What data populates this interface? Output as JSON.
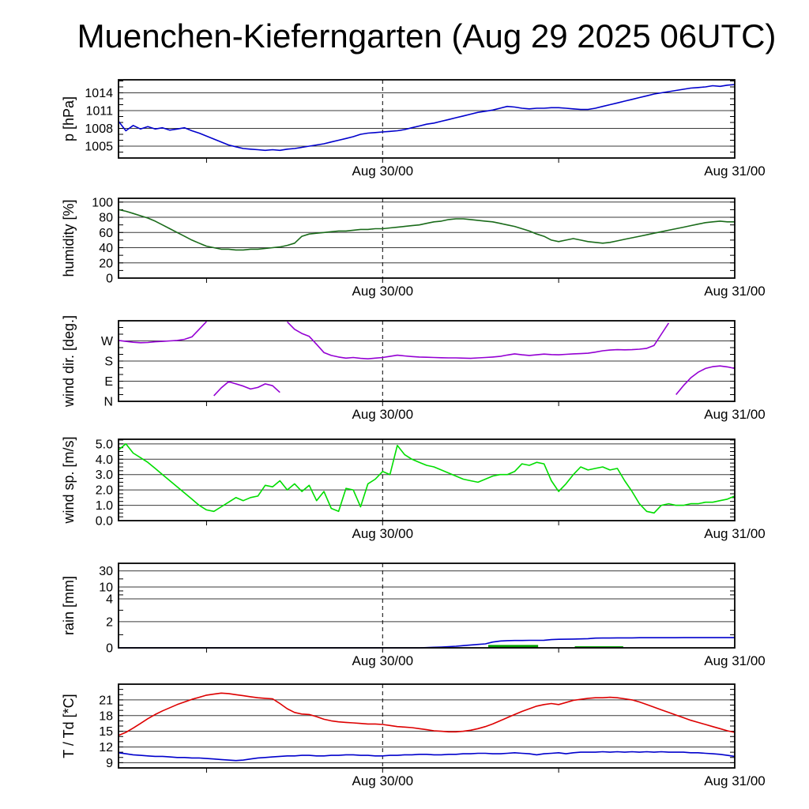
{
  "title": "Muenchen-Kieferngarten (Aug 29 2025 06UTC)",
  "x_axis": {
    "start_hour": 6,
    "end_hour": 48,
    "labels": [
      {
        "hour": 24,
        "label": "Aug 30/00"
      },
      {
        "hour": 48,
        "label": "Aug 31/00"
      }
    ],
    "minor_tick_hours": [
      12,
      36
    ],
    "dashed_line_hour": 24
  },
  "chart_data": [
    {
      "type": "line",
      "name": "pressure",
      "ylabel": "p [hPa]",
      "ylim": [
        1003,
        1016.2
      ],
      "yticks": [
        {
          "v": 1005,
          "label": "1005"
        },
        {
          "v": 1008,
          "label": "1008"
        },
        {
          "v": 1011,
          "label": "1011"
        },
        {
          "v": 1014,
          "label": "1014"
        }
      ],
      "minor_step": 1,
      "series": [
        {
          "name": "pressure",
          "color": "#0000cc",
          "x_start": 6,
          "x_step": 0.5,
          "y": [
            1009.2,
            1007.6,
            1008.5,
            1007.9,
            1008.3,
            1007.9,
            1008.1,
            1007.7,
            1007.9,
            1008.1,
            1007.6,
            1007.2,
            1006.7,
            1006.2,
            1005.7,
            1005.2,
            1004.9,
            1004.6,
            1004.5,
            1004.4,
            1004.3,
            1004.4,
            1004.3,
            1004.5,
            1004.6,
            1004.8,
            1005.0,
            1005.2,
            1005.4,
            1005.7,
            1006.0,
            1006.3,
            1006.6,
            1007.0,
            1007.2,
            1007.3,
            1007.4,
            1007.5,
            1007.6,
            1007.8,
            1008.1,
            1008.4,
            1008.7,
            1008.9,
            1009.2,
            1009.5,
            1009.8,
            1010.1,
            1010.4,
            1010.7,
            1010.9,
            1011.1,
            1011.4,
            1011.7,
            1011.6,
            1011.4,
            1011.3,
            1011.4,
            1011.4,
            1011.5,
            1011.5,
            1011.4,
            1011.3,
            1011.2,
            1011.2,
            1011.4,
            1011.7,
            1012.0,
            1012.3,
            1012.6,
            1012.9,
            1013.2,
            1013.5,
            1013.8,
            1014.0,
            1014.2,
            1014.4,
            1014.6,
            1014.8,
            1014.9,
            1015.0,
            1015.2,
            1015.1,
            1015.3,
            1015.4
          ]
        }
      ]
    },
    {
      "type": "line",
      "name": "humidity",
      "ylabel": "humidity [%]",
      "ylim": [
        0,
        105
      ],
      "yticks": [
        {
          "v": 0,
          "label": "0"
        },
        {
          "v": 20,
          "label": "20"
        },
        {
          "v": 40,
          "label": "40"
        },
        {
          "v": 60,
          "label": "60"
        },
        {
          "v": 80,
          "label": "80"
        },
        {
          "v": 100,
          "label": "100"
        }
      ],
      "minor_step": 10,
      "series": [
        {
          "name": "humidity",
          "color": "#1a6b1a",
          "x_start": 6,
          "x_step": 0.5,
          "y": [
            90,
            88,
            85,
            82,
            79,
            75,
            70,
            65,
            60,
            55,
            50,
            46,
            42,
            40,
            38,
            38,
            37,
            37,
            38,
            38,
            39,
            40,
            41,
            43,
            46,
            55,
            58,
            59,
            60,
            61,
            62,
            62,
            63,
            64,
            64,
            65,
            65,
            66,
            67,
            68,
            69,
            70,
            72,
            74,
            75,
            77,
            78,
            78,
            77,
            76,
            75,
            74,
            72,
            70,
            68,
            65,
            62,
            58,
            55,
            50,
            48,
            50,
            52,
            50,
            48,
            47,
            46,
            47,
            49,
            51,
            53,
            55,
            57,
            59,
            61,
            63,
            65,
            67,
            69,
            71,
            73,
            74,
            75,
            74,
            74
          ]
        }
      ]
    },
    {
      "type": "line",
      "name": "wind-direction",
      "ylabel": "wind dir. [deg.]",
      "ylim": [
        0,
        360
      ],
      "wrap": true,
      "yticks": [
        {
          "v": 0,
          "label": "N"
        },
        {
          "v": 90,
          "label": "E"
        },
        {
          "v": 180,
          "label": "S"
        },
        {
          "v": 270,
          "label": "W"
        }
      ],
      "minor_step": 30,
      "series": [
        {
          "name": "wind-direction",
          "color": "#9400d3",
          "x_start": 6,
          "x_step": 0.5,
          "y": [
            272,
            268,
            264,
            262,
            263,
            266,
            268,
            270,
            272,
            277,
            288,
            322,
            356,
            25,
            60,
            88,
            78,
            68,
            55,
            62,
            78,
            70,
            40,
            355,
            322,
            303,
            290,
            255,
            218,
            205,
            198,
            193,
            196,
            192,
            190,
            193,
            196,
            201,
            206,
            203,
            200,
            198,
            197,
            196,
            195,
            194,
            194,
            193,
            192,
            194,
            196,
            198,
            201,
            207,
            212,
            208,
            205,
            208,
            211,
            209,
            208,
            210,
            212,
            213,
            215,
            220,
            226,
            229,
            231,
            230,
            231,
            233,
            237,
            250,
            300,
            350,
            30,
            70,
            105,
            130,
            147,
            155,
            158,
            154,
            147
          ]
        }
      ]
    },
    {
      "type": "line",
      "name": "wind-speed",
      "ylabel": "wind sp. [m/s]",
      "ylim": [
        0,
        5.3
      ],
      "yticks": [
        {
          "v": 0,
          "label": "0.0"
        },
        {
          "v": 1,
          "label": "1.0"
        },
        {
          "v": 2,
          "label": "2.0"
        },
        {
          "v": 3,
          "label": "3.0"
        },
        {
          "v": 4,
          "label": "4.0"
        },
        {
          "v": 5,
          "label": "5.0"
        }
      ],
      "minor_step": 0.25,
      "series": [
        {
          "name": "wind-speed",
          "color": "#00dd00",
          "x_start": 6,
          "x_step": 0.5,
          "y": [
            4.6,
            5.0,
            4.4,
            4.1,
            3.8,
            3.4,
            3.0,
            2.6,
            2.2,
            1.8,
            1.4,
            1.0,
            0.7,
            0.6,
            0.9,
            1.2,
            1.5,
            1.3,
            1.5,
            1.6,
            2.3,
            2.2,
            2.6,
            2.0,
            2.4,
            1.9,
            2.3,
            1.3,
            1.9,
            0.8,
            0.6,
            2.1,
            2.0,
            0.9,
            2.4,
            2.7,
            3.2,
            3.0,
            4.9,
            4.3,
            4.0,
            3.8,
            3.6,
            3.5,
            3.3,
            3.1,
            2.9,
            2.7,
            2.6,
            2.5,
            2.7,
            2.9,
            3.0,
            3.0,
            3.2,
            3.7,
            3.6,
            3.8,
            3.7,
            2.6,
            1.9,
            2.4,
            3.0,
            3.5,
            3.3,
            3.4,
            3.5,
            3.3,
            3.4,
            2.6,
            1.9,
            1.1,
            0.6,
            0.5,
            1.0,
            1.1,
            1.0,
            1.0,
            1.1,
            1.1,
            1.2,
            1.2,
            1.3,
            1.4,
            1.6
          ]
        }
      ]
    },
    {
      "type": "line",
      "name": "rain",
      "ylabel": "rain [mm]",
      "scale_anchors": {
        "values": [
          0,
          2,
          4,
          10,
          30
        ],
        "positions": [
          0,
          0.31,
          0.58,
          0.72,
          0.91
        ]
      },
      "yticks": [
        {
          "v": 0,
          "label": "0"
        },
        {
          "v": 2,
          "label": "2"
        },
        {
          "v": 4,
          "label": "4"
        },
        {
          "v": 10,
          "label": "10"
        },
        {
          "v": 30,
          "label": "30"
        }
      ],
      "minor_values": [
        1,
        3,
        6,
        8,
        20
      ],
      "bars": [
        {
          "start": 31.2,
          "end": 34.6,
          "value": 0.22,
          "color": "#00a000"
        },
        {
          "start": 37.1,
          "end": 40.4,
          "value": 0.12,
          "color": "#00a000"
        }
      ],
      "series": [
        {
          "name": "accumulated-rain",
          "color": "#0000cc",
          "x_start": 6,
          "x_step": 0.5,
          "y": [
            0,
            0,
            0,
            0,
            0,
            0,
            0,
            0,
            0,
            0,
            0,
            0,
            0,
            0,
            0,
            0,
            0,
            0,
            0,
            0,
            0,
            0,
            0,
            0,
            0,
            0,
            0,
            0,
            0,
            0,
            0,
            0,
            0,
            0,
            0,
            0,
            0,
            0,
            0,
            0,
            0,
            0,
            0.02,
            0.04,
            0.06,
            0.09,
            0.12,
            0.17,
            0.22,
            0.26,
            0.3,
            0.44,
            0.52,
            0.55,
            0.56,
            0.56,
            0.57,
            0.57,
            0.58,
            0.63,
            0.65,
            0.66,
            0.67,
            0.68,
            0.7,
            0.74,
            0.75,
            0.75,
            0.76,
            0.76,
            0.76,
            0.77,
            0.77,
            0.77,
            0.77,
            0.77,
            0.77,
            0.78,
            0.78,
            0.78,
            0.78,
            0.78,
            0.78,
            0.78,
            0.78
          ]
        }
      ]
    },
    {
      "type": "line",
      "name": "temperature",
      "ylabel": "T / Td [*C]",
      "ylim": [
        8,
        24
      ],
      "yticks": [
        {
          "v": 9,
          "label": "9"
        },
        {
          "v": 12,
          "label": "12"
        },
        {
          "v": 15,
          "label": "15"
        },
        {
          "v": 18,
          "label": "18"
        },
        {
          "v": 21,
          "label": "21"
        }
      ],
      "minor_step": 1,
      "series": [
        {
          "name": "temperature",
          "color": "#dd0000",
          "x_start": 6,
          "x_step": 0.5,
          "y": [
            14.2,
            14.8,
            15.6,
            16.5,
            17.4,
            18.2,
            18.9,
            19.5,
            20.1,
            20.6,
            21.1,
            21.5,
            21.9,
            22.1,
            22.3,
            22.2,
            22.0,
            21.8,
            21.6,
            21.4,
            21.3,
            21.2,
            20.3,
            19.3,
            18.6,
            18.3,
            18.2,
            17.8,
            17.3,
            17.0,
            16.8,
            16.7,
            16.6,
            16.5,
            16.4,
            16.4,
            16.3,
            16.1,
            15.9,
            15.8,
            15.7,
            15.5,
            15.3,
            15.1,
            15.0,
            14.9,
            14.9,
            15.0,
            15.2,
            15.5,
            15.9,
            16.4,
            17.0,
            17.6,
            18.2,
            18.8,
            19.3,
            19.8,
            20.1,
            20.3,
            20.1,
            20.5,
            20.9,
            21.1,
            21.3,
            21.4,
            21.4,
            21.5,
            21.4,
            21.2,
            21.0,
            20.6,
            20.1,
            19.6,
            19.1,
            18.6,
            18.1,
            17.6,
            17.1,
            16.7,
            16.3,
            15.9,
            15.5,
            15.1,
            14.8
          ]
        },
        {
          "name": "dewpoint",
          "color": "#0000cc",
          "x_start": 6,
          "x_step": 0.5,
          "y": [
            10.9,
            10.7,
            10.5,
            10.4,
            10.3,
            10.2,
            10.2,
            10.1,
            10.0,
            10.0,
            9.9,
            9.9,
            9.8,
            9.7,
            9.6,
            9.5,
            9.4,
            9.5,
            9.7,
            9.9,
            10.0,
            10.1,
            10.2,
            10.3,
            10.3,
            10.4,
            10.4,
            10.3,
            10.3,
            10.4,
            10.4,
            10.5,
            10.5,
            10.4,
            10.4,
            10.3,
            10.3,
            10.4,
            10.4,
            10.5,
            10.5,
            10.6,
            10.6,
            10.5,
            10.5,
            10.6,
            10.6,
            10.7,
            10.7,
            10.8,
            10.8,
            10.7,
            10.7,
            10.8,
            10.9,
            10.8,
            10.7,
            10.5,
            10.7,
            10.8,
            10.9,
            10.7,
            10.9,
            11.0,
            11.0,
            11.0,
            11.1,
            11.0,
            11.1,
            11.0,
            11.1,
            11.0,
            11.1,
            11.0,
            11.1,
            11.0,
            11.0,
            11.0,
            10.9,
            10.9,
            10.8,
            10.7,
            10.6,
            10.4,
            10.2
          ]
        }
      ]
    }
  ]
}
